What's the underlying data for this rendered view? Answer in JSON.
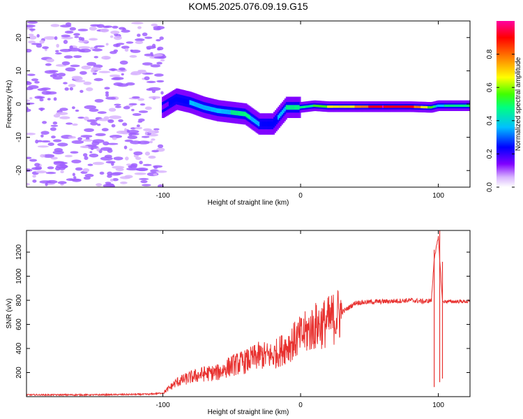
{
  "title": "KOM5.2025.076.09.19.G15",
  "chart_data": [
    {
      "type": "heatmap",
      "xlabel": "Height of straight line (km)",
      "ylabel": "Frequency (Hz)",
      "xlim": [
        -199,
        123
      ],
      "ylim": [
        -25,
        25
      ],
      "xticks": [
        "-100",
        "0",
        "100"
      ],
      "yticks": [
        "-20",
        "-10",
        "0",
        "10",
        "20"
      ],
      "colorbar": {
        "label": "Normalized spectral amplitude",
        "range": [
          0,
          1
        ],
        "ticks": [
          "0.0",
          "0.2",
          "0.4",
          "0.6",
          "0.8"
        ],
        "colors": [
          "#ffffff",
          "#d8b4fe",
          "#8000ff",
          "#0000ff",
          "#00c0ff",
          "#00ff80",
          "#40ff00",
          "#ffff00",
          "#ff8000",
          "#ff0000",
          "#ff00a0"
        ]
      },
      "ridge": {
        "x": [
          -100,
          -90,
          -80,
          -70,
          -60,
          -50,
          -40,
          -30,
          -20,
          -10,
          0,
          10,
          20,
          40,
          60,
          80,
          95,
          100,
          110,
          123
        ],
        "frequency": [
          -1,
          1.5,
          0.5,
          -1,
          -2,
          -2.5,
          -3,
          -6,
          -6,
          -1,
          -1,
          -0.5,
          -0.8,
          -0.8,
          -0.8,
          -0.8,
          -1,
          -0.5,
          -0.5,
          -0.5
        ],
        "amplitude": [
          0.2,
          0.3,
          0.35,
          0.4,
          0.4,
          0.45,
          0.5,
          0.35,
          0.3,
          0.45,
          0.5,
          0.55,
          0.65,
          0.75,
          0.95,
          0.9,
          0.6,
          0.4,
          0.5,
          0.55
        ]
      },
      "noise_region": {
        "x": [
          -199,
          -100
        ],
        "frequency": [
          -25,
          25
        ],
        "amplitude_max": 0.25
      }
    },
    {
      "type": "line",
      "xlabel": "Height of straight line (km)",
      "ylabel": "SNR (v/v)",
      "xlim": [
        -199,
        123
      ],
      "ylim": [
        0,
        1380
      ],
      "xticks": [
        "-100",
        "0",
        "100"
      ],
      "yticks": [
        "200",
        "400",
        "600",
        "800",
        "1000",
        "1200"
      ],
      "color": "#e8312f",
      "series": [
        {
          "x": [
            -199,
            -150,
            -110,
            -100,
            -90,
            -80,
            -70,
            -60,
            -50,
            -40,
            -30,
            -20,
            -10,
            0,
            10,
            20,
            30,
            40,
            60,
            80,
            90,
            95,
            97,
            100,
            103,
            105,
            110,
            123
          ],
          "snr": [
            15,
            15,
            20,
            30,
            120,
            160,
            190,
            200,
            260,
            290,
            340,
            340,
            420,
            500,
            580,
            620,
            700,
            780,
            790,
            800,
            790,
            800,
            1150,
            1320,
            790,
            790,
            790,
            790
          ]
        }
      ],
      "annotations": [
        {
          "x": 97,
          "snr_min": 80,
          "snr_max": 1220
        },
        {
          "x": 101,
          "snr_min": 120,
          "snr_max": 1380
        },
        {
          "x": 103,
          "snr_min": 150,
          "snr_max": 1120
        }
      ]
    }
  ]
}
